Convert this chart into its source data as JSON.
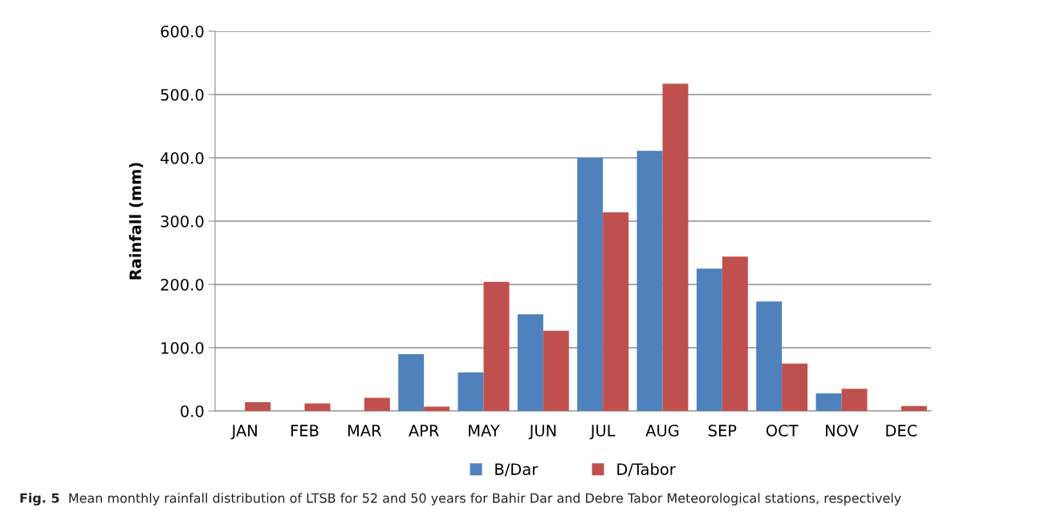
{
  "chart_data": {
    "type": "bar",
    "ylabel": "Rainfall (mm)",
    "categories": [
      "JAN",
      "FEB",
      "MAR",
      "APR",
      "MAY",
      "JUN",
      "JUL",
      "AUG",
      "SEP",
      "OCT",
      "NOV",
      "DEC"
    ],
    "series": [
      {
        "name": "B/Dar",
        "color": "#4f81bd",
        "values": [
          0,
          0,
          0,
          90,
          61,
          153,
          400,
          411,
          225,
          173,
          28,
          0
        ]
      },
      {
        "name": "D/Tabor",
        "color": "#c0504d",
        "values": [
          14,
          12,
          21,
          7,
          204,
          127,
          314,
          517,
          244,
          75,
          35,
          8
        ]
      }
    ],
    "ylim": [
      0,
      600
    ],
    "yticks": [
      {
        "value": 0,
        "label": "0.0"
      },
      {
        "value": 100,
        "label": "100.0"
      },
      {
        "value": 200,
        "label": "200.0"
      },
      {
        "value": 300,
        "label": "300.0"
      },
      {
        "value": 400,
        "label": "400.0"
      },
      {
        "value": 500,
        "label": "500.0"
      },
      {
        "value": 600,
        "label": "600.0"
      }
    ],
    "grid": "y",
    "legend": "bottom",
    "annotations": [
      "Fig. 5",
      "Mean monthly rainfall distribution of LTSB for 52 and 50 years for Bahir Dar and Debre Tabor Meteorological stations, respectively"
    ]
  }
}
